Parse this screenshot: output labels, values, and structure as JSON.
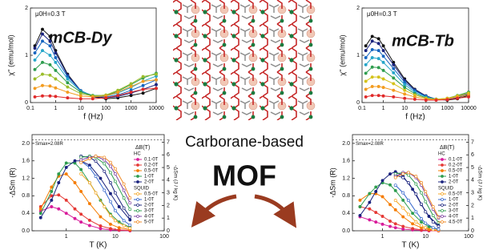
{
  "chart_data": [
    {
      "type": "line",
      "label": "mCB-Dy",
      "annotation": "μ0H=0.3 T",
      "x_label": "f (Hz)",
      "y_label": "χ'' (emu/mol)",
      "xscale": "log",
      "xlim": [
        0.1,
        10000
      ],
      "xticks": [
        0.1,
        1,
        10,
        100,
        1000,
        10000
      ],
      "ylim": [
        0,
        2
      ],
      "yticks": [
        0,
        1,
        2
      ],
      "x": [
        0.15,
        0.3,
        0.6,
        1,
        3,
        10,
        30,
        100,
        300,
        1000,
        3000,
        10000
      ],
      "series": [
        {
          "color": "#111111",
          "values": [
            1.2,
            1.55,
            1.4,
            1.1,
            0.6,
            0.25,
            0.12,
            0.08,
            0.1,
            0.15,
            0.2,
            0.3
          ]
        },
        {
          "color": "#1a237e",
          "values": [
            1.15,
            1.45,
            1.3,
            1.05,
            0.58,
            0.25,
            0.13,
            0.1,
            0.13,
            0.2,
            0.28,
            0.38
          ]
        },
        {
          "color": "#1565c0",
          "values": [
            1.05,
            1.3,
            1.2,
            0.95,
            0.55,
            0.25,
            0.14,
            0.12,
            0.16,
            0.26,
            0.36,
            0.48
          ]
        },
        {
          "color": "#26a6c9",
          "values": [
            0.9,
            1.1,
            1.0,
            0.85,
            0.5,
            0.24,
            0.15,
            0.14,
            0.2,
            0.32,
            0.45,
            0.56
          ]
        },
        {
          "color": "#2e9d4f",
          "values": [
            0.7,
            0.85,
            0.8,
            0.68,
            0.42,
            0.22,
            0.15,
            0.15,
            0.24,
            0.38,
            0.52,
            0.62
          ]
        },
        {
          "color": "#9bbd2a",
          "values": [
            0.5,
            0.6,
            0.58,
            0.5,
            0.33,
            0.19,
            0.14,
            0.16,
            0.26,
            0.4,
            0.55,
            0.6
          ]
        },
        {
          "color": "#f39c1f",
          "values": [
            0.3,
            0.36,
            0.35,
            0.31,
            0.22,
            0.14,
            0.12,
            0.14,
            0.22,
            0.34,
            0.45,
            0.48
          ]
        },
        {
          "color": "#e02a2a",
          "values": [
            0.12,
            0.14,
            0.14,
            0.13,
            0.1,
            0.08,
            0.08,
            0.1,
            0.15,
            0.22,
            0.28,
            0.3
          ]
        }
      ]
    },
    {
      "type": "line",
      "label": "mCB-Tb",
      "annotation": "μ0H=0.3 T",
      "x_label": "f (Hz)",
      "y_label": "χ'' (emu/mol)",
      "xscale": "log",
      "xlim": [
        0.1,
        10000
      ],
      "xticks": [
        0.1,
        1,
        10,
        100,
        1000,
        10000
      ],
      "ylim": [
        0,
        2
      ],
      "yticks": [
        0,
        1,
        2
      ],
      "x": [
        0.15,
        0.3,
        0.6,
        1,
        3,
        10,
        30,
        100,
        300,
        1000,
        3000,
        10000
      ],
      "series": [
        {
          "color": "#111111",
          "values": [
            1.2,
            1.4,
            1.35,
            1.2,
            0.85,
            0.5,
            0.28,
            0.14,
            0.07,
            0.05,
            0.08,
            0.15
          ]
        },
        {
          "color": "#1a237e",
          "values": [
            1.1,
            1.3,
            1.25,
            1.1,
            0.8,
            0.47,
            0.27,
            0.14,
            0.07,
            0.06,
            0.1,
            0.18
          ]
        },
        {
          "color": "#1565c0",
          "values": [
            0.95,
            1.12,
            1.1,
            0.98,
            0.72,
            0.43,
            0.25,
            0.13,
            0.07,
            0.07,
            0.12,
            0.2
          ]
        },
        {
          "color": "#26a6c9",
          "values": [
            0.8,
            0.95,
            0.93,
            0.85,
            0.63,
            0.38,
            0.22,
            0.12,
            0.07,
            0.08,
            0.14,
            0.22
          ]
        },
        {
          "color": "#2e9d4f",
          "values": [
            0.62,
            0.75,
            0.74,
            0.68,
            0.52,
            0.32,
            0.19,
            0.1,
            0.07,
            0.09,
            0.15,
            0.22
          ]
        },
        {
          "color": "#d4c21a",
          "values": [
            0.45,
            0.54,
            0.54,
            0.5,
            0.4,
            0.26,
            0.16,
            0.09,
            0.07,
            0.09,
            0.14,
            0.2
          ]
        },
        {
          "color": "#f39c1f",
          "values": [
            0.28,
            0.34,
            0.34,
            0.32,
            0.26,
            0.18,
            0.12,
            0.07,
            0.06,
            0.08,
            0.12,
            0.16
          ]
        },
        {
          "color": "#e02a2a",
          "values": [
            0.12,
            0.15,
            0.15,
            0.14,
            0.12,
            0.09,
            0.07,
            0.05,
            0.05,
            0.06,
            0.09,
            0.12
          ]
        }
      ]
    },
    {
      "type": "line",
      "x_label": "T (K)",
      "y_label": "-ΔSm (R)",
      "y2_label": "-ΔSm (J / kg K)",
      "xscale": "log",
      "xlim": [
        0.2,
        100
      ],
      "xticks": [
        1,
        10,
        100
      ],
      "ylim": [
        0,
        2.2
      ],
      "yticks": [
        {
          "value": 0,
          "label": "0.0"
        },
        0.4,
        0.8,
        1.2,
        1.6,
        {
          "value": 2,
          "label": "2.0"
        }
      ],
      "y2lim": [
        0,
        7.6
      ],
      "y2ticks": [
        0,
        1,
        2,
        3,
        4,
        5,
        6,
        7
      ],
      "hline": 2.08,
      "hline_label": "Smax=2.08R",
      "legend_title": "ΔB(T)",
      "legend_groups": [
        "HC",
        "SQUID"
      ],
      "series": [
        {
          "name": "0.1-0T",
          "color": "#d81b9a",
          "x": [
            0.3,
            0.5,
            0.7,
            1,
            1.5,
            2,
            3,
            5,
            8,
            12,
            20
          ],
          "values": [
            0.45,
            0.55,
            0.5,
            0.4,
            0.28,
            0.2,
            0.12,
            0.05,
            0.02,
            0.01,
            0
          ]
        },
        {
          "name": "0.2-0T",
          "color": "#e53935",
          "x": [
            0.3,
            0.5,
            0.7,
            1,
            1.5,
            2,
            3,
            5,
            8,
            12,
            20
          ],
          "values": [
            0.55,
            0.8,
            0.82,
            0.7,
            0.5,
            0.38,
            0.24,
            0.11,
            0.05,
            0.02,
            0.01
          ]
        },
        {
          "name": "0.5-0T",
          "color": "#f57c00",
          "x": [
            0.3,
            0.5,
            0.7,
            1,
            1.5,
            2,
            3,
            5,
            8,
            12,
            20
          ],
          "values": [
            0.5,
            1.0,
            1.25,
            1.3,
            1.1,
            0.9,
            0.62,
            0.32,
            0.15,
            0.07,
            0.03
          ]
        },
        {
          "name": "1-0T",
          "color": "#2e9d4f",
          "x": [
            0.3,
            0.5,
            0.7,
            1,
            1.5,
            2,
            3,
            5,
            8,
            12,
            20
          ],
          "values": [
            0.4,
            0.9,
            1.3,
            1.55,
            1.55,
            1.4,
            1.1,
            0.7,
            0.38,
            0.2,
            0.08
          ]
        },
        {
          "name": "2-0T",
          "color": "#1a237e",
          "x": [
            0.3,
            0.5,
            0.7,
            1,
            1.5,
            2,
            3,
            5,
            8,
            12,
            20
          ],
          "values": [
            0.3,
            0.7,
            1.1,
            1.45,
            1.6,
            1.6,
            1.5,
            1.2,
            0.85,
            0.55,
            0.25
          ]
        },
        {
          "name": "0.5-0T",
          "color": "#f5a623",
          "axis": "y2",
          "x": [
            2,
            3,
            4,
            6,
            8,
            10,
            15,
            20
          ],
          "values": [
            4.5,
            3.8,
            3.0,
            1.9,
            1.2,
            0.8,
            0.4,
            0.2
          ]
        },
        {
          "name": "1-0T",
          "color": "#3366cc",
          "axis": "y2",
          "x": [
            2,
            3,
            4,
            6,
            8,
            10,
            15,
            20
          ],
          "values": [
            5.5,
            5.0,
            4.3,
            3.2,
            2.3,
            1.6,
            0.8,
            0.45
          ]
        },
        {
          "name": "2-0T",
          "color": "#1a237e",
          "axis": "y2",
          "x": [
            2,
            3,
            4,
            6,
            8,
            10,
            15,
            20
          ],
          "values": [
            5.9,
            5.8,
            5.5,
            4.7,
            3.8,
            3.0,
            1.8,
            1.1
          ]
        },
        {
          "name": "3-0T",
          "color": "#2e9d4f",
          "axis": "y2",
          "x": [
            2,
            3,
            4,
            6,
            8,
            10,
            15,
            20
          ],
          "values": [
            5.8,
            5.9,
            5.8,
            5.3,
            4.6,
            3.9,
            2.6,
            1.7
          ]
        },
        {
          "name": "4-0T",
          "color": "#7b3fa0",
          "axis": "y2",
          "x": [
            2,
            3,
            4,
            6,
            8,
            10,
            15,
            20
          ],
          "values": [
            5.6,
            5.8,
            5.9,
            5.6,
            5.1,
            4.5,
            3.2,
            2.2
          ]
        },
        {
          "name": "5-0T",
          "color": "#f08a24",
          "axis": "y2",
          "x": [
            2,
            3,
            4,
            6,
            8,
            10,
            15,
            20
          ],
          "values": [
            5.4,
            5.7,
            5.9,
            5.8,
            5.4,
            4.9,
            3.7,
            2.6
          ]
        }
      ]
    },
    {
      "type": "line",
      "x_label": "T (K)",
      "y_label": "-ΔSm (R)",
      "y2_label": "-ΔSm (J / kg K)",
      "xscale": "log",
      "xlim": [
        0.2,
        100
      ],
      "xticks": [
        1,
        10,
        100
      ],
      "ylim": [
        0,
        2.2
      ],
      "yticks": [
        {
          "value": 0,
          "label": "0.0"
        },
        0.4,
        0.8,
        1.2,
        1.6,
        {
          "value": 2,
          "label": "2.0"
        }
      ],
      "y2lim": [
        0,
        7.6
      ],
      "y2ticks": [
        0,
        1,
        2,
        3,
        4,
        5,
        6,
        7
      ],
      "hline": 2.08,
      "hline_label": "Smax=2.08R",
      "legend_title": "ΔB(T)",
      "legend_groups": [
        "HC",
        "SQUID"
      ],
      "series": [
        {
          "name": "0.1-0T",
          "color": "#d81b9a",
          "x": [
            0.3,
            0.5,
            0.7,
            1,
            1.5,
            2,
            3,
            5,
            8,
            12,
            20
          ],
          "values": [
            0.32,
            0.25,
            0.2,
            0.15,
            0.1,
            0.07,
            0.04,
            0.02,
            0.01,
            0,
            0
          ]
        },
        {
          "name": "0.2-0T",
          "color": "#e53935",
          "x": [
            0.3,
            0.5,
            0.7,
            1,
            1.5,
            2,
            3,
            5,
            8,
            12,
            20
          ],
          "values": [
            0.55,
            0.5,
            0.42,
            0.33,
            0.22,
            0.16,
            0.1,
            0.05,
            0.02,
            0.01,
            0
          ]
        },
        {
          "name": "0.5-0T",
          "color": "#f57c00",
          "x": [
            0.3,
            0.5,
            0.7,
            1,
            1.5,
            2,
            3,
            5,
            8,
            12,
            20
          ],
          "values": [
            0.7,
            0.85,
            0.85,
            0.78,
            0.6,
            0.48,
            0.32,
            0.16,
            0.07,
            0.03,
            0.01
          ]
        },
        {
          "name": "1-0T",
          "color": "#2e9d4f",
          "x": [
            0.3,
            0.5,
            0.7,
            1,
            1.5,
            2,
            3,
            5,
            8,
            12,
            20
          ],
          "values": [
            0.55,
            0.85,
            1.0,
            1.1,
            1.05,
            0.92,
            0.7,
            0.4,
            0.2,
            0.09,
            0.03
          ]
        },
        {
          "name": "2-0T",
          "color": "#1a237e",
          "x": [
            0.3,
            0.5,
            0.7,
            1,
            1.5,
            2,
            3,
            5,
            8,
            12,
            20
          ],
          "values": [
            0.35,
            0.65,
            0.9,
            1.15,
            1.3,
            1.35,
            1.25,
            0.95,
            0.6,
            0.33,
            0.12
          ]
        },
        {
          "name": "0.5-0T",
          "color": "#f5a623",
          "axis": "y2",
          "x": [
            2,
            3,
            4,
            6,
            8,
            10,
            15,
            20
          ],
          "values": [
            2.4,
            1.8,
            1.3,
            0.7,
            0.4,
            0.25,
            0.1,
            0.05
          ]
        },
        {
          "name": "1-0T",
          "color": "#3366cc",
          "axis": "y2",
          "x": [
            2,
            3,
            4,
            6,
            8,
            10,
            15,
            20
          ],
          "values": [
            3.6,
            3.0,
            2.4,
            1.5,
            0.95,
            0.6,
            0.25,
            0.12
          ]
        },
        {
          "name": "2-0T",
          "color": "#1a237e",
          "axis": "y2",
          "x": [
            2,
            3,
            4,
            6,
            8,
            10,
            15,
            20
          ],
          "values": [
            4.4,
            4.2,
            3.8,
            2.9,
            2.1,
            1.5,
            0.7,
            0.35
          ]
        },
        {
          "name": "3-0T",
          "color": "#2e9d4f",
          "axis": "y2",
          "x": [
            2,
            3,
            4,
            6,
            8,
            10,
            15,
            20
          ],
          "values": [
            4.5,
            4.6,
            4.4,
            3.7,
            3.0,
            2.3,
            1.2,
            0.65
          ]
        },
        {
          "name": "4-0T",
          "color": "#7b3fa0",
          "axis": "y2",
          "x": [
            2,
            3,
            4,
            6,
            8,
            10,
            15,
            20
          ],
          "values": [
            4.3,
            4.6,
            4.6,
            4.2,
            3.6,
            2.9,
            1.7,
            1.0
          ]
        },
        {
          "name": "4.5-0T",
          "color": "#f08a24",
          "axis": "y2",
          "x": [
            2,
            3,
            4,
            6,
            8,
            10,
            15,
            20
          ],
          "values": [
            4.2,
            4.5,
            4.6,
            4.3,
            3.8,
            3.1,
            1.9,
            1.1
          ]
        }
      ]
    }
  ],
  "center": {
    "line1": "Carborane-based",
    "line2": "MOF"
  }
}
